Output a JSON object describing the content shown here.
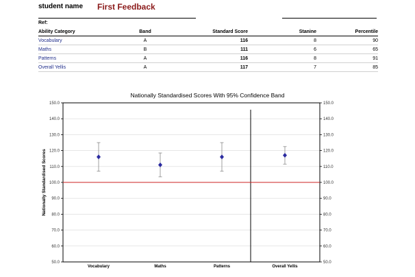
{
  "header": {
    "student_label": "student name",
    "title": "First Feedback",
    "ref_label": "Ref:"
  },
  "table": {
    "columns": [
      "Ability Category",
      "Band",
      "Standard Score",
      "Stanine",
      "Percentile"
    ],
    "rows": [
      {
        "category": "Vocabulary",
        "band": "A",
        "standard_score": "116",
        "stanine": "8",
        "percentile": "90"
      },
      {
        "category": "Maths",
        "band": "B",
        "standard_score": "111",
        "stanine": "6",
        "percentile": "65"
      },
      {
        "category": "Patterns",
        "band": "A",
        "standard_score": "116",
        "stanine": "8",
        "percentile": "91"
      },
      {
        "category": "Overall Yellis",
        "band": "A",
        "standard_score": "117",
        "stanine": "7",
        "percentile": "85"
      }
    ]
  },
  "chart_data": {
    "type": "scatter",
    "title": "Nationally Standardised Scores With 95% Confidence Band",
    "ylabel": "Nationally Standardised Scores",
    "xlabel": "",
    "categories": [
      "Vocabulary",
      "Maths",
      "Patterns",
      "Overall Yellis"
    ],
    "values": [
      116,
      111,
      116,
      117
    ],
    "confidence_low": [
      107,
      103.5,
      107,
      111.5
    ],
    "confidence_high": [
      125,
      118.5,
      125,
      122.5
    ],
    "ylim": [
      50,
      150
    ],
    "yticks": [
      "50.0",
      "60.0",
      "70.0",
      "80.0",
      "90.0",
      "100.0",
      "110.0",
      "120.0",
      "130.0",
      "140.0",
      "150.0"
    ],
    "reference_line": 100,
    "grid": true,
    "colors": {
      "marker": "#2b2ba0",
      "error_bar": "#888888",
      "reference_line": "#cc2222",
      "grid": "#d8d8d8"
    }
  }
}
